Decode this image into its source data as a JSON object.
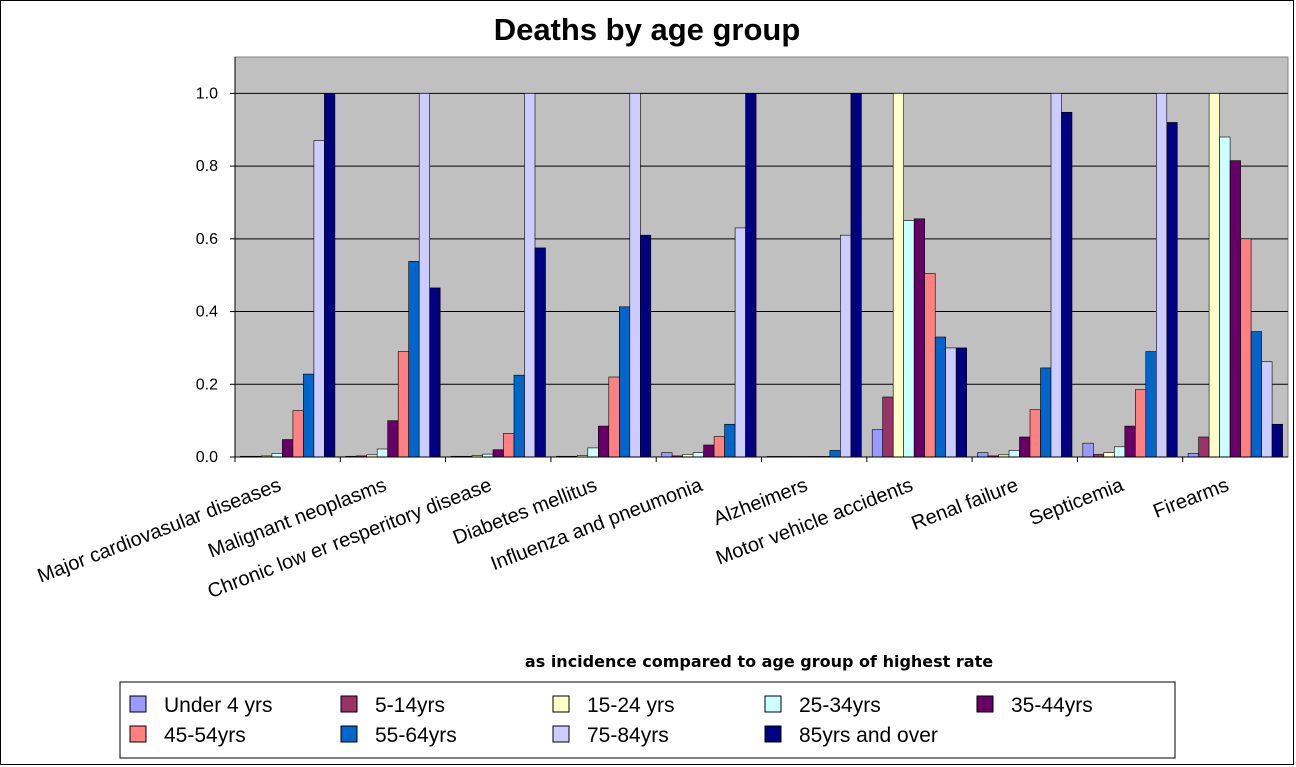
{
  "chart_data": {
    "type": "bar",
    "title": "Deaths by age group",
    "subtitle": "as incidence compared to age group of highest rate",
    "ylim": [
      0,
      1.1
    ],
    "yticks": [
      "0.0",
      "0.2",
      "0.4",
      "0.6",
      "0.8",
      "1.0"
    ],
    "grid": true,
    "legend_position": "bottom",
    "plot_background": "#c0c0c0",
    "categories": [
      "Major cardiovasular diseases",
      "Malignant neoplasms",
      "Chronic low er resperitory disease",
      "Diabetes mellitus",
      "Influenza and pneumonia",
      "Alzheimers",
      "Motor vehicle accidents",
      "Renal failure",
      "Septicemia",
      "Firearms"
    ],
    "series": [
      {
        "name": "Under 4 yrs",
        "color": "#9999ff",
        "values": [
          0.002,
          0.002,
          0.002,
          0.002,
          0.012,
          0.0,
          0.075,
          0.012,
          0.038,
          0.01
        ]
      },
      {
        "name": "5-14yrs",
        "color": "#993366",
        "values": [
          0.002,
          0.003,
          0.002,
          0.002,
          0.003,
          0.0,
          0.165,
          0.003,
          0.007,
          0.055
        ]
      },
      {
        "name": "15-24 yrs",
        "color": "#ffffcc",
        "values": [
          0.003,
          0.006,
          0.004,
          0.004,
          0.007,
          0.0,
          1.0,
          0.006,
          0.012,
          1.0
        ]
      },
      {
        "name": "25-34yrs",
        "color": "#ccffff",
        "values": [
          0.01,
          0.022,
          0.008,
          0.025,
          0.012,
          0.0,
          0.65,
          0.018,
          0.028,
          0.88
        ]
      },
      {
        "name": "35-44yrs",
        "color": "#660066",
        "values": [
          0.048,
          0.1,
          0.02,
          0.085,
          0.033,
          0.0,
          0.655,
          0.055,
          0.085,
          0.815
        ]
      },
      {
        "name": "45-54yrs",
        "color": "#ff8080",
        "values": [
          0.128,
          0.29,
          0.065,
          0.22,
          0.056,
          0.0,
          0.505,
          0.13,
          0.185,
          0.6
        ]
      },
      {
        "name": "55-64yrs",
        "color": "#0066cc",
        "values": [
          0.228,
          0.538,
          0.225,
          0.413,
          0.09,
          0.018,
          0.33,
          0.245,
          0.29,
          0.345
        ]
      },
      {
        "name": "75-84yrs",
        "color": "#ccccff",
        "values": [
          0.87,
          1.0,
          1.0,
          1.0,
          0.63,
          0.61,
          0.3,
          1.0,
          1.0,
          0.262
        ]
      },
      {
        "name": "85yrs and over",
        "color": "#000080",
        "values": [
          1.0,
          0.465,
          0.575,
          0.61,
          1.0,
          1.0,
          0.3,
          0.948,
          0.92,
          0.09
        ]
      }
    ]
  }
}
